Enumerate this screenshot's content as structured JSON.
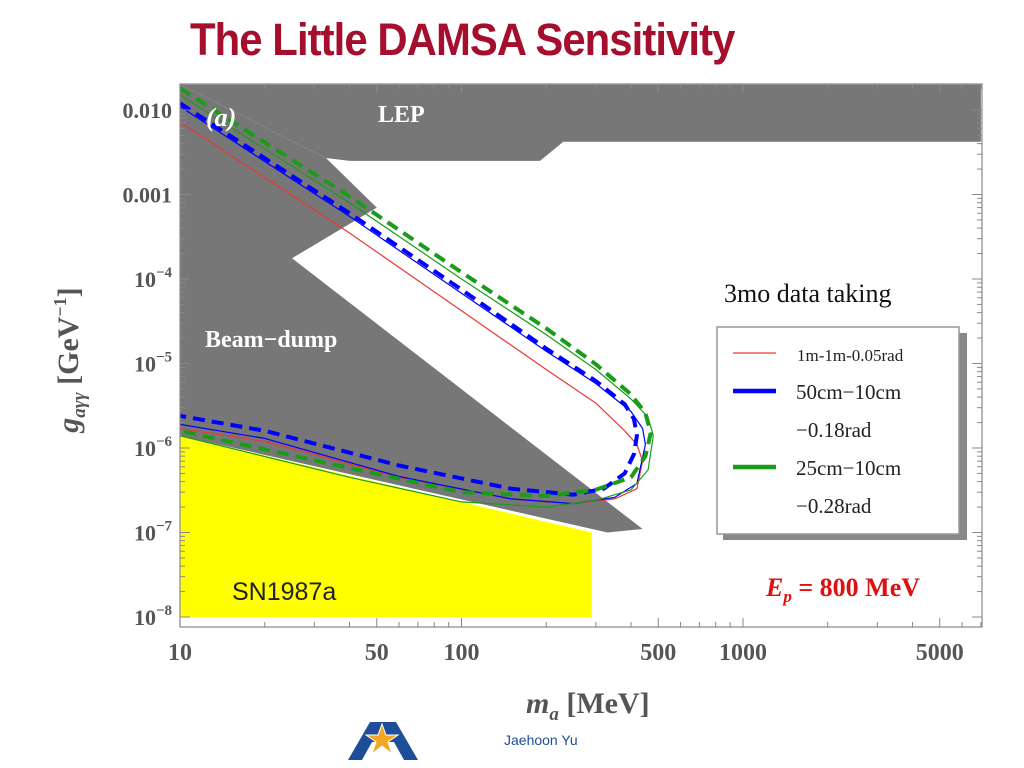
{
  "slide": {
    "title": "The Little DAMSA Sensitivity",
    "presenter": "Jaehoon Yu",
    "logo": "university-a-star-logo"
  },
  "chart_data": {
    "type": "line",
    "panel_label": "(a)",
    "xlabel": "m_a [MeV]",
    "ylabel": "g_aγγ [GeV⁻¹]",
    "xscale": "log",
    "yscale": "log",
    "xlim": [
      10,
      7000
    ],
    "ylim": [
      1e-08,
      0.02
    ],
    "x_ticks": [
      10,
      50,
      100,
      500,
      1000,
      5000
    ],
    "x_tick_labels": [
      "10",
      "50",
      "100",
      "500",
      "1000",
      "5000"
    ],
    "y_ticks": [
      0.01,
      0.001,
      0.0001,
      1e-05,
      1e-06,
      1e-07,
      1e-08
    ],
    "y_tick_labels": [
      {
        "base": "0.010",
        "exp": ""
      },
      {
        "base": "0.001",
        "exp": ""
      },
      {
        "base": "10",
        "exp": "−4"
      },
      {
        "base": "10",
        "exp": "−5"
      },
      {
        "base": "10",
        "exp": "−6"
      },
      {
        "base": "10",
        "exp": "−7"
      },
      {
        "base": "10",
        "exp": "−8"
      }
    ],
    "regions": [
      {
        "name": "LEP",
        "label": "LEP",
        "color": "#777777",
        "points": [
          [
            10,
            0.02
          ],
          [
            7000,
            0.02
          ],
          [
            7000,
            0.0042
          ],
          [
            230,
            0.0042
          ],
          [
            190,
            0.0025
          ],
          [
            40,
            0.0025
          ],
          [
            33,
            0.0027
          ],
          [
            10,
            0.02
          ]
        ]
      },
      {
        "name": "Beam-dump",
        "label": "Beam−dump",
        "color": "#777777",
        "points": [
          [
            10,
            0.02
          ],
          [
            33,
            0.0027
          ],
          [
            50,
            0.0007
          ],
          [
            25,
            0.000176
          ],
          [
            440,
            1.1e-07
          ],
          [
            330,
            1e-07
          ],
          [
            10,
            1.4e-06
          ]
        ]
      },
      {
        "name": "SN1987a",
        "label": "SN1987a",
        "color": "#ffff00",
        "points": [
          [
            10,
            1.4e-06
          ],
          [
            290,
            1e-07
          ],
          [
            290,
            1e-08
          ],
          [
            10,
            1e-08
          ]
        ]
      }
    ],
    "series": [
      {
        "name": "1m-1m-0.05rad",
        "color": "#e8393a",
        "width": 1.2,
        "dash": "solid",
        "x": [
          10,
          40,
          100,
          200,
          300,
          380,
          420,
          440,
          420,
          350,
          250,
          150,
          60,
          20,
          10
        ],
        "y": [
          0.0072,
          0.00035,
          4.2e-05,
          8.5e-06,
          3.4e-06,
          1.6e-06,
          1.1e-06,
          7e-07,
          3.3e-07,
          2.5e-07,
          2.2e-07,
          2.5e-07,
          4.5e-07,
          1.2e-06,
          1.7e-06
        ]
      },
      {
        "name": "50cm−10cm −0.18rad",
        "color": "#0000ff",
        "width": 1.2,
        "dash": "solid",
        "x": [
          10,
          40,
          100,
          200,
          300,
          400,
          440,
          450,
          420,
          350,
          250,
          150,
          60,
          20,
          10
        ],
        "y": [
          0.011,
          0.00055,
          6.8e-05,
          1.4e-05,
          5.8e-06,
          2.7e-06,
          1.7e-06,
          1.1e-06,
          3.8e-07,
          2.6e-07,
          2.2e-07,
          2.5e-07,
          4.6e-07,
          1.3e-06,
          1.9e-06
        ]
      },
      {
        "name": "50cm−10cm −0.18rad (dashed)",
        "color": "#0000ff",
        "width": 4,
        "dash": "12 7",
        "x": [
          10,
          40,
          100,
          200,
          300,
          380,
          410,
          420,
          410,
          380,
          320,
          250,
          150,
          60,
          20,
          10
        ],
        "y": [
          0.012,
          0.0006,
          7.5e-05,
          1.5e-05,
          6.2e-06,
          3.3e-06,
          2.2e-06,
          1.4e-06,
          8.5e-07,
          5e-07,
          3.3e-07,
          2.8e-07,
          3.3e-07,
          6.2e-07,
          1.6e-06,
          2.4e-06
        ]
      },
      {
        "name": "25cm−10cm −0.28rad",
        "color": "#1a9c1a",
        "width": 1.2,
        "dash": "solid",
        "x": [
          10,
          40,
          100,
          200,
          300,
          400,
          460,
          480,
          460,
          400,
          300,
          200,
          100,
          40,
          10
        ],
        "y": [
          0.015,
          0.0008,
          0.0001,
          2.2e-05,
          8.5e-06,
          3.8e-06,
          2.3e-06,
          1.4e-06,
          5.5e-07,
          3.2e-07,
          2.4e-07,
          2e-07,
          2.3e-07,
          4.5e-07,
          1.4e-06
        ]
      },
      {
        "name": "25cm−10cm −0.28rad (dashed)",
        "color": "#1a9c1a",
        "width": 4,
        "dash": "12 7",
        "x": [
          10,
          40,
          100,
          200,
          300,
          400,
          450,
          470,
          450,
          400,
          300,
          200,
          100,
          40,
          10
        ],
        "y": [
          0.018,
          0.00095,
          0.00012,
          2.6e-05,
          9.8e-06,
          4.3e-06,
          2.6e-06,
          1.5e-06,
          8e-07,
          4.5e-07,
          3.2e-07,
          2.7e-07,
          3e-07,
          5.8e-07,
          1.6e-06
        ]
      }
    ],
    "legend": {
      "title": "3mo data taking",
      "entries": [
        {
          "label": "1m-1m-0.05rad",
          "color": "#e8393a",
          "style": "thin"
        },
        {
          "label": "50cm−10cm",
          "color": "#0000ff",
          "style": "thick"
        },
        {
          "label": "−0.18rad",
          "color": "",
          "style": "none"
        },
        {
          "label": "25cm−10cm",
          "color": "#1a9c1a",
          "style": "thick"
        },
        {
          "label": "−0.28rad",
          "color": "",
          "style": "none"
        }
      ]
    },
    "annotations": [
      {
        "name": "beam-energy",
        "text": "E_p = 800 MeV",
        "color": "#dd1111"
      }
    ]
  }
}
